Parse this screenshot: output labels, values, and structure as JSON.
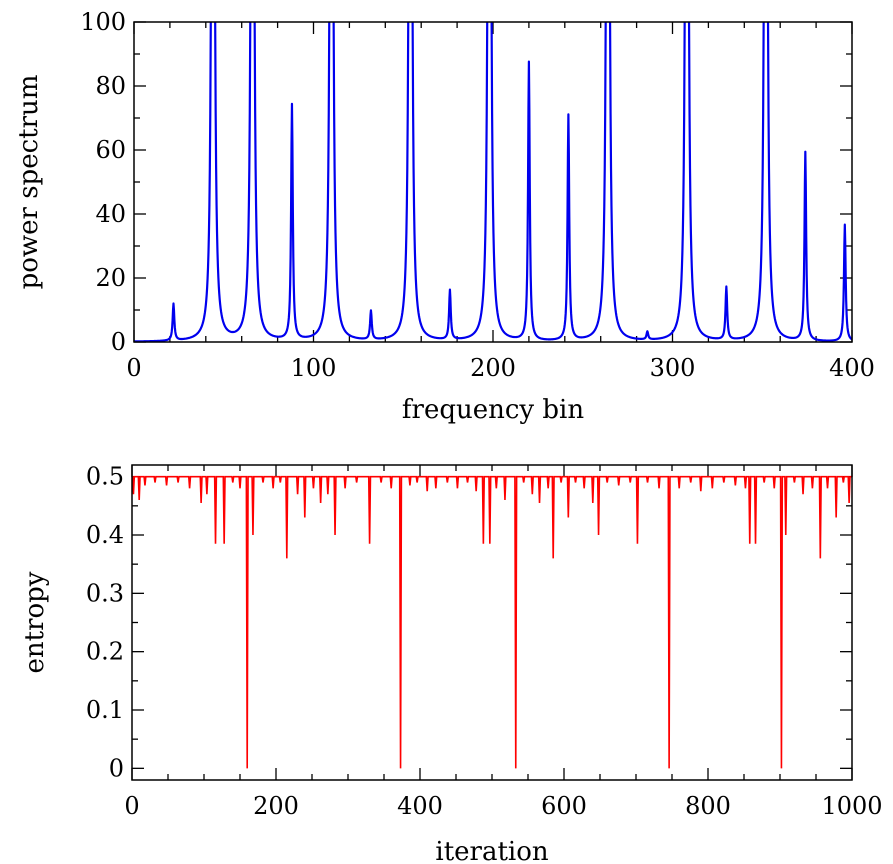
{
  "chart_data": [
    {
      "type": "line",
      "xlabel": "frequency bin",
      "ylabel": "power spectrum",
      "xlim": [
        0,
        400
      ],
      "ylim": [
        0,
        100
      ],
      "x_ticks": [
        0,
        100,
        200,
        300,
        400
      ],
      "y_ticks": [
        0,
        20,
        40,
        60,
        80,
        100
      ],
      "x_tick_labels": [
        "0",
        "100",
        "200",
        "300",
        "400"
      ],
      "y_tick_labels": [
        "0",
        "20",
        "40",
        "60",
        "80",
        "100"
      ],
      "x_minor_step": 20,
      "y_minor_step": 10,
      "grid": false,
      "series": [
        {
          "color": "#0000ee",
          "peaks": [
            {
              "x": 22,
              "y": 11.5
            },
            {
              "x": 44,
              "y": 100
            },
            {
              "x": 66,
              "y": 100
            },
            {
              "x": 88,
              "y": 73.5
            },
            {
              "x": 110,
              "y": 100
            },
            {
              "x": 132,
              "y": 9
            },
            {
              "x": 154,
              "y": 100
            },
            {
              "x": 176,
              "y": 15.5
            },
            {
              "x": 198,
              "y": 100
            },
            {
              "x": 220,
              "y": 87
            },
            {
              "x": 242,
              "y": 70.5
            },
            {
              "x": 264,
              "y": 100
            },
            {
              "x": 286,
              "y": 2.5
            },
            {
              "x": 308,
              "y": 100
            },
            {
              "x": 330,
              "y": 16.5
            },
            {
              "x": 352,
              "y": 100
            },
            {
              "x": 374,
              "y": 59
            },
            {
              "x": 396,
              "y": 36.5
            }
          ]
        }
      ]
    },
    {
      "type": "line",
      "xlabel": "iteration",
      "ylabel": "entropy",
      "xlim": [
        0,
        1000
      ],
      "ylim": [
        -0.02,
        0.52
      ],
      "x_ticks": [
        0,
        200,
        400,
        600,
        800,
        1000
      ],
      "y_ticks": [
        0,
        0.1,
        0.2,
        0.3,
        0.4,
        0.5
      ],
      "x_tick_labels": [
        "0",
        "200",
        "400",
        "600",
        "800",
        "1000"
      ],
      "y_tick_labels": [
        "0",
        "0.1",
        "0.2",
        "0.3",
        "0.4",
        "0.5"
      ],
      "x_minor_step": 50,
      "y_minor_step": 0.05,
      "grid": false,
      "series": [
        {
          "color": "#ff0000",
          "baseline": 0.5,
          "dips": [
            {
              "x": 2,
              "y": 0.47
            },
            {
              "x": 10,
              "y": 0.46
            },
            {
              "x": 18,
              "y": 0.485
            },
            {
              "x": 32,
              "y": 0.49
            },
            {
              "x": 48,
              "y": 0.485
            },
            {
              "x": 64,
              "y": 0.49
            },
            {
              "x": 80,
              "y": 0.48
            },
            {
              "x": 96,
              "y": 0.455
            },
            {
              "x": 104,
              "y": 0.47
            },
            {
              "x": 116,
              "y": 0.385
            },
            {
              "x": 128,
              "y": 0.385
            },
            {
              "x": 140,
              "y": 0.49
            },
            {
              "x": 150,
              "y": 0.48
            },
            {
              "x": 160,
              "y": 0.0
            },
            {
              "x": 168,
              "y": 0.4
            },
            {
              "x": 182,
              "y": 0.49
            },
            {
              "x": 196,
              "y": 0.48
            },
            {
              "x": 206,
              "y": 0.49
            },
            {
              "x": 215,
              "y": 0.36
            },
            {
              "x": 230,
              "y": 0.47
            },
            {
              "x": 240,
              "y": 0.43
            },
            {
              "x": 252,
              "y": 0.48
            },
            {
              "x": 262,
              "y": 0.455
            },
            {
              "x": 272,
              "y": 0.47
            },
            {
              "x": 282,
              "y": 0.4
            },
            {
              "x": 296,
              "y": 0.48
            },
            {
              "x": 312,
              "y": 0.49
            },
            {
              "x": 330,
              "y": 0.385
            },
            {
              "x": 346,
              "y": 0.49
            },
            {
              "x": 360,
              "y": 0.48
            },
            {
              "x": 373,
              "y": 0.0
            },
            {
              "x": 386,
              "y": 0.485
            },
            {
              "x": 396,
              "y": 0.49
            },
            {
              "x": 410,
              "y": 0.475
            },
            {
              "x": 422,
              "y": 0.48
            },
            {
              "x": 438,
              "y": 0.49
            },
            {
              "x": 452,
              "y": 0.48
            },
            {
              "x": 466,
              "y": 0.49
            },
            {
              "x": 478,
              "y": 0.475
            },
            {
              "x": 488,
              "y": 0.385
            },
            {
              "x": 497,
              "y": 0.385
            },
            {
              "x": 506,
              "y": 0.48
            },
            {
              "x": 518,
              "y": 0.46
            },
            {
              "x": 533,
              "y": 0.0
            },
            {
              "x": 544,
              "y": 0.49
            },
            {
              "x": 556,
              "y": 0.47
            },
            {
              "x": 566,
              "y": 0.455
            },
            {
              "x": 578,
              "y": 0.48
            },
            {
              "x": 585,
              "y": 0.36
            },
            {
              "x": 596,
              "y": 0.49
            },
            {
              "x": 606,
              "y": 0.43
            },
            {
              "x": 616,
              "y": 0.49
            },
            {
              "x": 628,
              "y": 0.48
            },
            {
              "x": 640,
              "y": 0.455
            },
            {
              "x": 648,
              "y": 0.4
            },
            {
              "x": 660,
              "y": 0.49
            },
            {
              "x": 676,
              "y": 0.485
            },
            {
              "x": 692,
              "y": 0.49
            },
            {
              "x": 702,
              "y": 0.385
            },
            {
              "x": 716,
              "y": 0.49
            },
            {
              "x": 732,
              "y": 0.48
            },
            {
              "x": 746,
              "y": 0.0
            },
            {
              "x": 760,
              "y": 0.48
            },
            {
              "x": 776,
              "y": 0.49
            },
            {
              "x": 790,
              "y": 0.475
            },
            {
              "x": 806,
              "y": 0.48
            },
            {
              "x": 822,
              "y": 0.49
            },
            {
              "x": 838,
              "y": 0.485
            },
            {
              "x": 852,
              "y": 0.48
            },
            {
              "x": 858,
              "y": 0.385
            },
            {
              "x": 866,
              "y": 0.385
            },
            {
              "x": 878,
              "y": 0.49
            },
            {
              "x": 892,
              "y": 0.48
            },
            {
              "x": 902,
              "y": 0.0
            },
            {
              "x": 908,
              "y": 0.4
            },
            {
              "x": 920,
              "y": 0.49
            },
            {
              "x": 932,
              "y": 0.47
            },
            {
              "x": 945,
              "y": 0.48
            },
            {
              "x": 956,
              "y": 0.36
            },
            {
              "x": 966,
              "y": 0.48
            },
            {
              "x": 978,
              "y": 0.43
            },
            {
              "x": 988,
              "y": 0.49
            },
            {
              "x": 996,
              "y": 0.455
            }
          ]
        }
      ]
    }
  ]
}
